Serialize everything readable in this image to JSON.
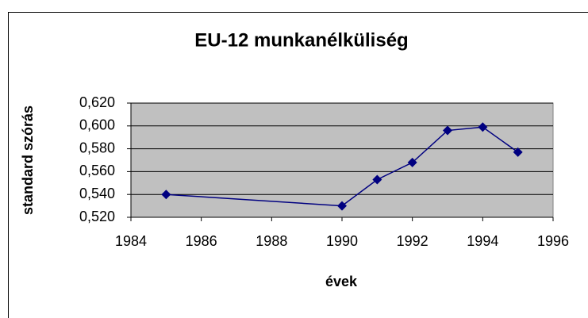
{
  "chart_data": {
    "type": "line",
    "title": "EU-12 munkanélküliség",
    "xlabel": "évek",
    "ylabel": "standard szórás",
    "x": [
      1985,
      1990,
      1991,
      1992,
      1993,
      1994,
      1995
    ],
    "series": [
      {
        "name": "standard szórás",
        "color": "#000080",
        "values": [
          0.54,
          0.53,
          0.553,
          0.568,
          0.596,
          0.599,
          0.577
        ]
      }
    ],
    "xlim": [
      1984,
      1996
    ],
    "xticks": [
      1984,
      1986,
      1988,
      1990,
      1992,
      1994,
      1996
    ],
    "ylim": [
      0.52,
      0.62
    ],
    "yticks": [
      {
        "value": 0.52,
        "label": "0,520"
      },
      {
        "value": 0.54,
        "label": "0,540"
      },
      {
        "value": 0.56,
        "label": "0,560"
      },
      {
        "value": 0.58,
        "label": "0,580"
      },
      {
        "value": 0.6,
        "label": "0,600"
      },
      {
        "value": 0.62,
        "label": "0,620"
      }
    ],
    "grid": true,
    "plot_background": "#c0c0c0"
  }
}
